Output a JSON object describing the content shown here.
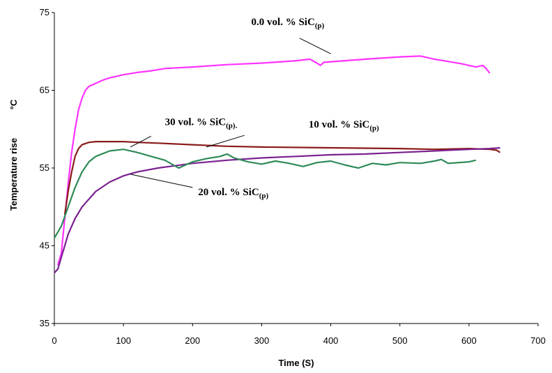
{
  "chart_data": {
    "type": "line",
    "title": "",
    "xlabel": "Time (S)",
    "ylabel": "Temperature rise",
    "ylabel_unit": "°C",
    "xlim": [
      0,
      700
    ],
    "ylim": [
      35,
      75
    ],
    "x_ticks": [
      0,
      100,
      200,
      300,
      400,
      500,
      600,
      700
    ],
    "y_ticks": [
      35,
      45,
      55,
      65,
      75
    ],
    "grid": false,
    "legend": "none",
    "series": [
      {
        "name": "0.0 vol. % SiC",
        "name_sub": "(p)",
        "color": "#ff33ff",
        "points": [
          [
            5,
            42.5
          ],
          [
            10,
            44
          ],
          [
            15,
            48.5
          ],
          [
            20,
            53
          ],
          [
            25,
            57
          ],
          [
            30,
            60
          ],
          [
            35,
            62.5
          ],
          [
            40,
            64
          ],
          [
            45,
            65
          ],
          [
            50,
            65.5
          ],
          [
            60,
            65.9
          ],
          [
            70,
            66.3
          ],
          [
            80,
            66.6
          ],
          [
            90,
            66.8
          ],
          [
            100,
            67
          ],
          [
            120,
            67.3
          ],
          [
            140,
            67.5
          ],
          [
            160,
            67.8
          ],
          [
            200,
            68
          ],
          [
            250,
            68.3
          ],
          [
            300,
            68.5
          ],
          [
            350,
            68.8
          ],
          [
            370,
            69
          ],
          [
            380,
            68.5
          ],
          [
            385,
            68.2
          ],
          [
            390,
            68.6
          ],
          [
            420,
            68.8
          ],
          [
            450,
            69
          ],
          [
            500,
            69.3
          ],
          [
            530,
            69.4
          ],
          [
            550,
            69
          ],
          [
            570,
            68.7
          ],
          [
            590,
            68.4
          ],
          [
            600,
            68.2
          ],
          [
            610,
            68
          ],
          [
            620,
            68.2
          ],
          [
            625,
            67.8
          ],
          [
            630,
            67.2
          ]
        ],
        "label": {
          "text": "0.0 vol. % SiC",
          "sub": "(p)",
          "at": [
            285,
            73.4
          ],
          "pointer": [
            [
              355,
              71.7
            ],
            [
              400,
              69.7
            ]
          ]
        }
      },
      {
        "name": "10 vol. % SiC",
        "name_sub": "(p)",
        "color": "#8b1a1a",
        "points": [
          [
            15,
            49
          ],
          [
            20,
            52
          ],
          [
            25,
            54.5
          ],
          [
            30,
            56.5
          ],
          [
            35,
            57.5
          ],
          [
            40,
            58
          ],
          [
            50,
            58.3
          ],
          [
            60,
            58.4
          ],
          [
            80,
            58.4
          ],
          [
            100,
            58.4
          ],
          [
            120,
            58.3
          ],
          [
            150,
            58.2
          ],
          [
            200,
            58
          ],
          [
            250,
            57.8
          ],
          [
            300,
            57.7
          ],
          [
            400,
            57.6
          ],
          [
            500,
            57.5
          ],
          [
            550,
            57.4
          ],
          [
            600,
            57.5
          ],
          [
            630,
            57.4
          ],
          [
            640,
            57.3
          ],
          [
            645,
            57
          ]
        ],
        "label": {
          "text": "10 vol. % SiC",
          "sub": "(p)",
          "at": [
            368,
            60.2
          ],
          "pointer": [
            [
              275,
              59.2
            ],
            [
              220,
              57.7
            ]
          ]
        }
      },
      {
        "name": "20 vol. % SiC",
        "name_sub": "(p)",
        "color": "#7a2090",
        "points": [
          [
            0,
            41.5
          ],
          [
            5,
            42
          ],
          [
            10,
            43.5
          ],
          [
            15,
            45
          ],
          [
            20,
            46.5
          ],
          [
            30,
            48.5
          ],
          [
            40,
            50
          ],
          [
            50,
            51
          ],
          [
            60,
            52
          ],
          [
            80,
            53.2
          ],
          [
            100,
            54
          ],
          [
            120,
            54.5
          ],
          [
            150,
            55
          ],
          [
            200,
            55.6
          ],
          [
            250,
            56
          ],
          [
            300,
            56.3
          ],
          [
            350,
            56.5
          ],
          [
            400,
            56.7
          ],
          [
            450,
            56.8
          ],
          [
            500,
            57
          ],
          [
            550,
            57.2
          ],
          [
            600,
            57.4
          ],
          [
            630,
            57.5
          ],
          [
            645,
            57.6
          ]
        ],
        "label": {
          "text": "20 vol. % SiC",
          "sub": "(p)",
          "at": [
            208,
            51.5
          ],
          "pointer": [
            [
              200,
              52.5
            ],
            [
              110,
              54.2
            ]
          ]
        }
      },
      {
        "name": "30 vol. % SiC",
        "name_sub": "(p)",
        "color": "#2e8b57",
        "points": [
          [
            0,
            46
          ],
          [
            10,
            47.5
          ],
          [
            20,
            50
          ],
          [
            30,
            52.5
          ],
          [
            40,
            54.5
          ],
          [
            50,
            55.8
          ],
          [
            60,
            56.5
          ],
          [
            80,
            57.2
          ],
          [
            100,
            57.4
          ],
          [
            120,
            57
          ],
          [
            140,
            56.5
          ],
          [
            160,
            56
          ],
          [
            170,
            55.5
          ],
          [
            180,
            55
          ],
          [
            190,
            55.4
          ],
          [
            200,
            55.8
          ],
          [
            220,
            56.2
          ],
          [
            240,
            56.5
          ],
          [
            250,
            56.8
          ],
          [
            260,
            56.3
          ],
          [
            280,
            55.8
          ],
          [
            300,
            55.5
          ],
          [
            320,
            55.9
          ],
          [
            340,
            55.6
          ],
          [
            360,
            55.2
          ],
          [
            380,
            55.7
          ],
          [
            400,
            55.9
          ],
          [
            420,
            55.4
          ],
          [
            440,
            55
          ],
          [
            460,
            55.6
          ],
          [
            480,
            55.4
          ],
          [
            500,
            55.7
          ],
          [
            530,
            55.6
          ],
          [
            550,
            55.9
          ],
          [
            560,
            56.1
          ],
          [
            570,
            55.6
          ],
          [
            600,
            55.8
          ],
          [
            610,
            56
          ]
        ],
        "label": {
          "text": "30 vol. % SiC",
          "sub": "(p).",
          "at": [
            160,
            60.5
          ],
          "pointer": [
            [
              140,
              59.1
            ],
            [
              110,
              57.7
            ]
          ]
        }
      }
    ]
  }
}
